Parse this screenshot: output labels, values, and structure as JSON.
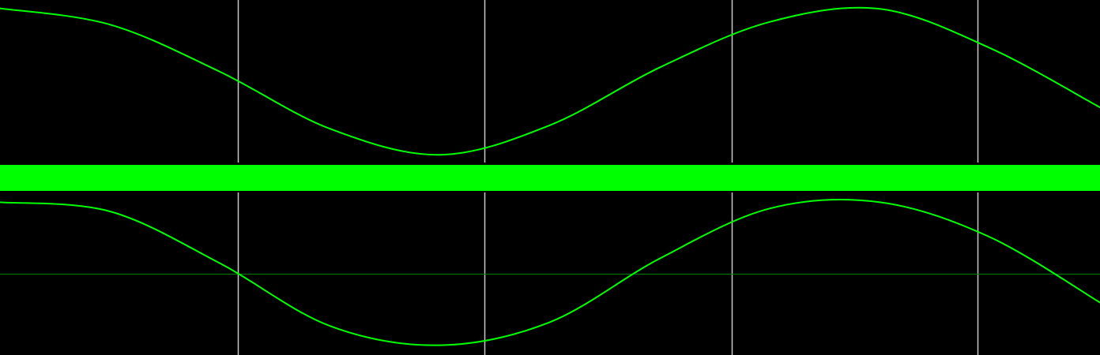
{
  "chart_data": [
    {
      "type": "line",
      "panel": "top",
      "series": [
        {
          "waveform": "sine",
          "x": [
            0,
            0.1,
            0.2,
            0.3,
            0.4,
            0.5,
            0.6,
            0.7,
            0.8,
            0.9,
            1.0
          ],
          "values": [
            0.987,
            0.767,
            0.128,
            -0.643,
            -0.995,
            -0.595,
            0.189,
            0.804,
            0.979,
            0.45,
            -0.354
          ]
        }
      ],
      "xlim": [
        0,
        1
      ],
      "ylim": [
        -1.1,
        1.1
      ],
      "grid": {
        "vertical_lines_at": [
          0.2164,
          0.4406,
          0.6649,
          0.889
        ],
        "horizontal_lines_at": []
      }
    },
    {
      "type": "line",
      "panel": "bottom",
      "series": [
        {
          "waveform": "clipped sine",
          "clip_level": 0.88,
          "x": [
            0,
            0.1,
            0.2,
            0.3,
            0.4,
            0.5,
            0.6,
            0.7,
            0.8,
            0.9,
            1.0
          ],
          "values": [
            0.88,
            0.767,
            0.128,
            -0.643,
            -0.88,
            -0.595,
            0.189,
            0.804,
            0.88,
            0.45,
            -0.354
          ]
        }
      ],
      "xlim": [
        0,
        1
      ],
      "ylim": [
        -1.0,
        1.0
      ],
      "grid": {
        "vertical_lines_at": [
          0.2164,
          0.4406,
          0.6649,
          0.889
        ],
        "horizontal_lines_at": [
          0
        ]
      }
    }
  ],
  "colors": {
    "background": "#000000",
    "trace": "#00ff00",
    "separator_band": "#00ff00",
    "gridline": "#c8c8c8",
    "zero_line": "#008000"
  }
}
